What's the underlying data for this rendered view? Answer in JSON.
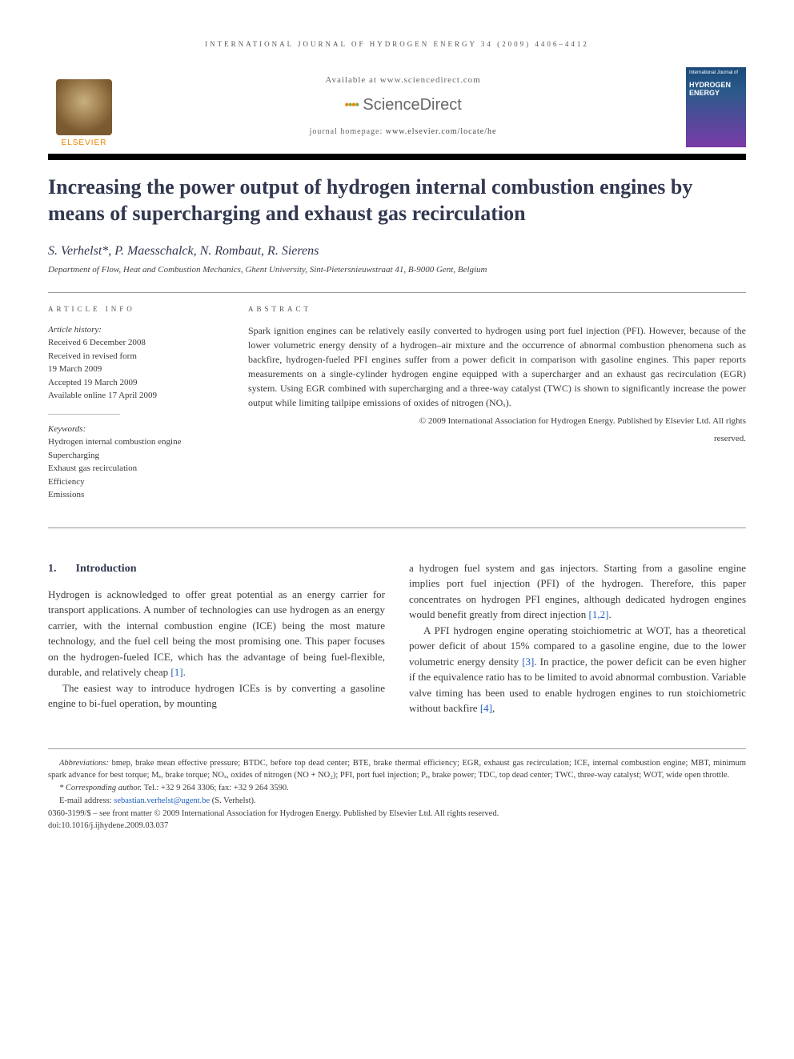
{
  "running_header": "INTERNATIONAL JOURNAL OF HYDROGEN ENERGY 34 (2009) 4406–4412",
  "header": {
    "available_at": "Available at www.sciencedirect.com",
    "sd_brand": "ScienceDirect",
    "homepage_label": "journal homepage: ",
    "homepage_url": "www.elsevier.com/locate/he",
    "elsevier": "ELSEVIER",
    "cover_small": "International Journal of",
    "cover_title": "HYDROGEN ENERGY"
  },
  "title": "Increasing the power output of hydrogen internal combustion engines by means of supercharging and exhaust gas recirculation",
  "authors": "S. Verhelst*, P. Maesschalck, N. Rombaut, R. Sierens",
  "affiliation": "Department of Flow, Heat and Combustion Mechanics, Ghent University, Sint-Pietersnieuwstraat 41, B-9000 Gent, Belgium",
  "info": {
    "label": "ARTICLE INFO",
    "history_heading": "Article history:",
    "history": [
      "Received 6 December 2008",
      "Received in revised form",
      "19 March 2009",
      "Accepted 19 March 2009",
      "Available online 17 April 2009"
    ],
    "keywords_heading": "Keywords:",
    "keywords": [
      "Hydrogen internal combustion engine",
      "Supercharging",
      "Exhaust gas recirculation",
      "Efficiency",
      "Emissions"
    ]
  },
  "abstract": {
    "label": "ABSTRACT",
    "text": "Spark ignition engines can be relatively easily converted to hydrogen using port fuel injection (PFI). However, because of the lower volumetric energy density of a hydrogen–air mixture and the occurrence of abnormal combustion phenomena such as backfire, hydrogen-fueled PFI engines suffer from a power deficit in comparison with gasoline engines. This paper reports measurements on a single-cylinder hydrogen engine equipped with a supercharger and an exhaust gas recirculation (EGR) system. Using EGR combined with supercharging and a three-way catalyst (TWC) is shown to significantly increase the power output while limiting tailpipe emissions of oxides of nitrogen (NOₓ).",
    "copyright1": "© 2009 International Association for Hydrogen Energy. Published by Elsevier Ltd. All rights",
    "copyright2": "reserved."
  },
  "intro": {
    "heading_num": "1.",
    "heading": "Introduction",
    "p1": "Hydrogen is acknowledged to offer great potential as an energy carrier for transport applications. A number of technologies can use hydrogen as an energy carrier, with the internal combustion engine (ICE) being the most mature technology, and the fuel cell being the most promising one. This paper focuses on the hydrogen-fueled ICE, which has the advantage of being fuel-flexible, durable, and relatively cheap ",
    "p1_cite": "[1]",
    "p1_end": ".",
    "p2": "The easiest way to introduce hydrogen ICEs is by converting a gasoline engine to bi-fuel operation, by mounting",
    "p3a": "a hydrogen fuel system and gas injectors. Starting from a gasoline engine implies port fuel injection (PFI) of the hydrogen. Therefore, this paper concentrates on hydrogen PFI engines, although dedicated hydrogen engines would benefit greatly from direct injection ",
    "p3_cite": "[1,2]",
    "p3_end": ".",
    "p4a": "A PFI hydrogen engine operating stoichiometric at WOT, has a theoretical power deficit of about 15% compared to a gasoline engine, due to the lower volumetric energy density ",
    "p4_cite1": "[3]",
    "p4b": ". In practice, the power deficit can be even higher if the equivalence ratio has to be limited to avoid abnormal combustion. Variable valve timing has been used to enable hydrogen engines to run stoichiometric without backfire ",
    "p4_cite2": "[4]",
    "p4_end": ","
  },
  "footer": {
    "abbrev_label": "Abbreviations:",
    "abbrev": " bmep, brake mean effective pressure; BTDC, before top dead center; BTE, brake thermal efficiency; EGR, exhaust gas recirculation; ICE, internal combustion engine; MBT, minimum spark advance for best torque; Mₑ, brake torque; NOₓ, oxides of nitrogen (NO + NO₂); PFI, port fuel injection; Pₑ, brake power; TDC, top dead center; TWC, three-way catalyst; WOT, wide open throttle.",
    "corresp_label": "* Corresponding author.",
    "corresp": " Tel.: +32 9 264 3306; fax: +32 9 264 3590.",
    "email_label": "E-mail address: ",
    "email": "sebastian.verhelst@ugent.be",
    "email_after": " (S. Verhelst).",
    "issn": "0360-3199/$ – see front matter © 2009 International Association for Hydrogen Energy. Published by Elsevier Ltd. All rights reserved.",
    "doi": "doi:10.1016/j.ijhydene.2009.03.037"
  },
  "colors": {
    "heading": "#323850",
    "link": "#2060c0",
    "orange": "#ef8200"
  }
}
